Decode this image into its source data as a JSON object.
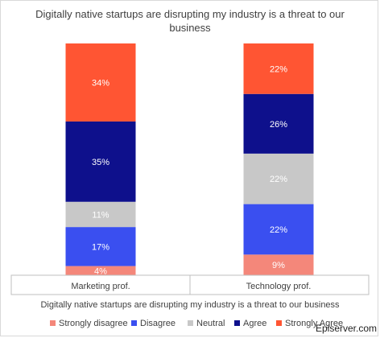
{
  "chart_data": {
    "type": "bar",
    "stacked": true,
    "title": "Digitally native startups are disrupting my industry is a threat to our business",
    "xlabel": "Digitally native startups are disrupting my industry is a threat to our business",
    "categories": [
      "Marketing prof.",
      "Technology prof."
    ],
    "series": [
      {
        "name": "Strongly disagree",
        "color": "#f4877a",
        "values": [
          4,
          9
        ],
        "labels": [
          "4%",
          "9%"
        ]
      },
      {
        "name": "Disagree",
        "color": "#3a4ff0",
        "values": [
          17,
          22
        ],
        "labels": [
          "17%",
          "22%"
        ]
      },
      {
        "name": "Neutral",
        "color": "#c8c8c8",
        "values": [
          11,
          22
        ],
        "labels": [
          "11%",
          "22%"
        ]
      },
      {
        "name": "Agree",
        "color": "#0e108c",
        "values": [
          35,
          26
        ],
        "labels": [
          "35%",
          "26%"
        ]
      },
      {
        "name": "Strongly Agree",
        "color": "#ff5533",
        "values": [
          34,
          22
        ],
        "labels": [
          "34%",
          "22%"
        ]
      }
    ],
    "ylim": [
      0,
      101
    ],
    "grid": false,
    "legend_position": "bottom"
  },
  "watermark": "Episerver.com"
}
